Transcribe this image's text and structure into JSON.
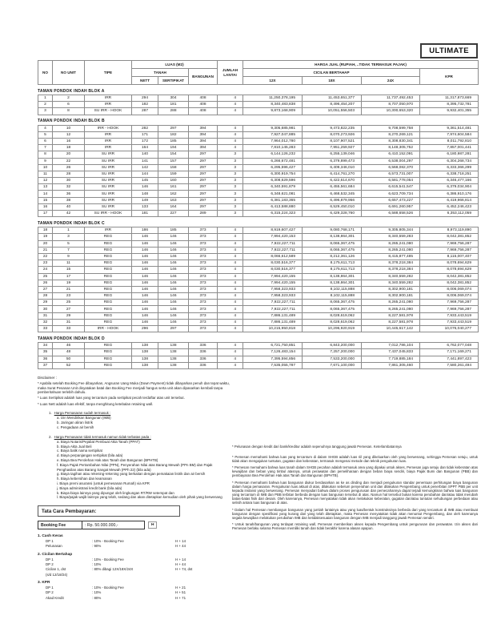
{
  "badge": "ULTIMATE",
  "table": {
    "header": {
      "no": "NO",
      "no_unit": "NO UNIT",
      "tipe": "TIPE",
      "luas": "LUAS (M2)",
      "tanah": "TANAH",
      "nett": "NETT",
      "sertipikat": "SERTIPIKAT",
      "bangunan": "BANGUNAN",
      "jumlah_lantai": "JUMLAH LANTAI",
      "harga_jual": "HARGA JUAL (RUPIAH, ..TIDAK TERMASUK PAJAK)",
      "cicilan": "CICILAN BERTAHAP",
      "x12": "12X",
      "x18": "18X",
      "x24": "24X",
      "kpr": "KPR"
    }
  },
  "sections": [
    {
      "title": "TAMAN PONDOK INDAH BLOK A",
      "rows": [
        [
          "1",
          "2",
          "IRR",
          "294",
          "304",
          "408",
          "4",
          "11,250,378,195",
          "11,453,651,377",
          "11,737,492,453",
          "11,317,873,669"
        ],
        [
          "2",
          "6",
          "IRR",
          "182",
          "181",
          "408",
          "4",
          "8,340,483,838",
          "8,496,454,207",
          "8,707,050,970",
          "8,395,732,781"
        ],
        [
          "3",
          "8",
          "SU IRR - HOOK",
          "287",
          "288",
          "408",
          "4",
          "9,873,168,909",
          "10,051,556,503",
          "10,300,653,320",
          "9,932,401,355"
        ]
      ]
    },
    {
      "title": "TAMAN PONDOK INDAH BLOK B",
      "rows": [
        [
          "4",
          "10",
          "IRR - HOOK",
          "282",
          "297",
          "394",
          "4",
          "9,305,685,981",
          "9,473,822,235",
          "9,708,599,758",
          "9,361,514,481"
        ],
        [
          "5",
          "12",
          "IRR",
          "171",
          "182",
          "394",
          "4",
          "7,927,047,885",
          "8,070,273,926",
          "8,270,269,121",
          "7,974,604,584"
        ],
        [
          "6",
          "16",
          "IRR",
          "172",
          "185",
          "394",
          "4",
          "7,964,012,780",
          "8,107,907,521",
          "8,308,830,341",
          "8,011,792,810"
        ],
        [
          "7",
          "18",
          "IRR",
          "164",
          "194",
          "394",
          "4",
          "7,810,145,283",
          "7,951,259,927",
          "8,148,305,752",
          "7,857,001,441"
        ],
        [
          "8",
          "20",
          "SU IRR",
          "140",
          "154",
          "297",
          "3",
          "6,144,126,232",
          "6,255,139,046",
          "6,410,152,091",
          "6,180,987,281"
        ],
        [
          "9",
          "22",
          "SU IRR",
          "141",
          "157",
          "297",
          "3",
          "6,266,672,481",
          "6,379,899,473",
          "6,538,004,297",
          "6,304,268,734"
        ],
        [
          "10",
          "26",
          "SU IRR",
          "142",
          "158",
          "297",
          "3",
          "6,295,596,427",
          "6,409,346,010",
          "6,568,082,370",
          "6,333,366,299"
        ],
        [
          "11",
          "28",
          "SU IRR",
          "144",
          "159",
          "297",
          "3",
          "6,300,919,754",
          "6,414,761,270",
          "6,573,731,007",
          "6,338,718,251"
        ],
        [
          "12",
          "30",
          "SU IRR",
          "145",
          "160",
          "297",
          "3",
          "6,308,629,596",
          "6,422,614,670",
          "6,581,778,054",
          "6,346,477,166"
        ],
        [
          "13",
          "32",
          "SU IRR",
          "146",
          "161",
          "297",
          "3",
          "6,340,591,879",
          "6,455,561,684",
          "6,615,541,547",
          "6,379,034,904"
        ],
        [
          "14",
          "36",
          "SU IRR",
          "148",
          "162",
          "297",
          "3",
          "6,348,621,081",
          "6,468,532,345",
          "6,623,709,734",
          "6,386,910,176"
        ],
        [
          "15",
          "38",
          "SU IRR",
          "149",
          "163",
          "297",
          "3",
          "6,381,183,365",
          "6,496,879,956",
          "6,657,473,227",
          "6,419,966,814"
        ],
        [
          "16",
          "40",
          "SU IRR",
          "133",
          "164",
          "297",
          "3",
          "6,413,588,880",
          "6,529,450,010",
          "6,691,260,957",
          "6,452,246,423"
        ],
        [
          "17",
          "42",
          "SU IRR - HOOK",
          "181",
          "227",
          "289",
          "3",
          "6,315,224,323",
          "6,429,328,760",
          "6,588,658,526",
          "6,353,112,059"
        ]
      ]
    },
    {
      "title": "TAMAN PONDOK INDAH BLOK C",
      "rows": [
        [
          "18",
          "1",
          "IRR",
          "186",
          "185",
          "373",
          "4",
          "8,919,607,427",
          "9,080,768,171",
          "9,305,805,344",
          "8,973,119,890"
        ],
        [
          "19",
          "3",
          "REG",
          "146",
          "146",
          "373",
          "4",
          "7,994,420,153",
          "8,138,864,301",
          "8,340,559,283",
          "8,042,381,852"
        ],
        [
          "20",
          "5",
          "REG",
          "146",
          "146",
          "373",
          "4",
          "7,922,227,711",
          "8,065,367,475",
          "8,265,241,080",
          "7,969,756,287"
        ],
        [
          "21",
          "7",
          "REG",
          "146",
          "146",
          "373",
          "4",
          "7,922,227,711",
          "8,065,367,475",
          "8,265,241,080",
          "7,969,756,287"
        ],
        [
          "22",
          "9",
          "REG",
          "146",
          "146",
          "373",
          "4",
          "8,066,612,589",
          "8,212,361,126",
          "8,415,877,485",
          "8,115,007,407"
        ],
        [
          "23",
          "11",
          "REG",
          "146",
          "146",
          "373",
          "4",
          "8,030,516,377",
          "8,175,611,713",
          "8,378,218,384",
          "8,078,694,629"
        ],
        [
          "24",
          "15",
          "REG",
          "146",
          "146",
          "373",
          "4",
          "8,030,516,377",
          "8,175,611,713",
          "8,378,218,384",
          "8,078,694,629"
        ],
        [
          "25",
          "17",
          "REG",
          "146",
          "146",
          "373",
          "4",
          "7,994,420,155",
          "8,138,864,301",
          "8,340,559,282",
          "8,042,381,852"
        ],
        [
          "26",
          "19",
          "REG",
          "146",
          "146",
          "373",
          "4",
          "7,994,420,155",
          "8,138,864,301",
          "8,340,559,282",
          "8,042,381,852"
        ],
        [
          "27",
          "21",
          "REG",
          "146",
          "146",
          "373",
          "4",
          "7,958,323,933",
          "8,102,115,888",
          "8,302,900,181",
          "8,006,069,074"
        ],
        [
          "28",
          "23",
          "REG",
          "146",
          "146",
          "373",
          "4",
          "7,958,323,933",
          "8,102,115,888",
          "8,302,900,181",
          "8,006,069,074"
        ],
        [
          "29",
          "25",
          "REG",
          "146",
          "146",
          "373",
          "4",
          "7,922,227,711",
          "8,065,367,475",
          "8,265,241,080",
          "7,969,756,287"
        ],
        [
          "30",
          "27",
          "REG",
          "146",
          "146",
          "373",
          "4",
          "7,922,227,711",
          "8,065,367,475",
          "8,265,241,080",
          "7,969,756,287"
        ],
        [
          "31",
          "29",
          "REG",
          "146",
          "146",
          "373",
          "4",
          "7,886,131,489",
          "8,028,619,062",
          "8,227,581,978",
          "7,933,443,519"
        ],
        [
          "32",
          "31",
          "REG",
          "146",
          "146",
          "373",
          "4",
          "7,886,131,489",
          "8,028,619,062",
          "8,227,581,978",
          "7,933,443,519"
        ],
        [
          "33",
          "33",
          "IRR - HOOK",
          "296",
          "297",
          "373",
          "4",
          "10,215,950,818",
          "10,296,920,919",
          "10,445,617,142",
          "10,076,040,277"
        ]
      ]
    },
    {
      "title": "TAMAN PONDOK INDAH BLOK D",
      "rows": [
        [
          "34",
          "46",
          "REG",
          "138",
          "138",
          "336",
          "4",
          "6,721,750,851",
          "6,843,200,000",
          "7,012,786,104",
          "6,762,077,048"
        ],
        [
          "35",
          "48",
          "REG",
          "138",
          "138",
          "336",
          "4",
          "7,126,483,154",
          "7,257,200,000",
          "7,437,045,833",
          "7,171,169,271"
        ],
        [
          "36",
          "50",
          "REG",
          "138",
          "138",
          "336",
          "4",
          "7,395,594,856",
          "7,533,200,000",
          "7,719,885,184",
          "7,441,897,423"
        ],
        [
          "37",
          "52",
          "REG",
          "138",
          "138",
          "336",
          "4",
          "7,535,055,787",
          "7,671,100,000",
          "7,861,305,460",
          "7,580,261,494"
        ]
      ]
    }
  ],
  "disclaimer": {
    "title": "Disclaimer :",
    "bullets": [
      "* Apabila setelah Booking Fee dibayarkan, Angsuran Uang Muka (Down Payment) tidak dibayarkan penuh dan tepat waktu, maka Surat Pesanan Unit dinyatakan batal dan Booking Fee menjadi hangus serta unit akan dipasarkan kembali tanpa pemberitahuan terlebih dahulu.",
      "* Luas Sertipikat adalah luas yang tercantum pada sertipikat pecah terdaftar atas unit tersebut.",
      "* Luas Nett adalah luas efektif, tanpa menghitung ketebalan retaining wall."
    ]
  },
  "included": {
    "number": "1.",
    "title": "Harga Pemasaran sudah termasuk :",
    "items": [
      "a. Izin Mendirikan Bangunan (IMB)",
      "b. Jaringan aliran listrik",
      "c. Pengadaan air bersih"
    ]
  },
  "excluded": {
    "number": "2.",
    "title": "Harga Pemasaran tidak termasuk namun tidak terbatas pada :",
    "items": [
      "a. Biaya Notaris/Pejabat Pembuat Akta Tanah (PPAT)",
      "b. Biaya Akta Jual Beli",
      "c. Biaya balik nama sertipikat",
      "d. Biaya perpanjangan sertipikat (bila ada)",
      "e. Biaya Bea Perolehan Hak atas Tanah dan Bangunan (BPHTB)",
      "f. Biaya Pajak Pertambahan Nilai (PPN), Penyerahan Nilai atas Barang Mewah (PPn BM) dan Pajak Penghasilan atas Barang Sangat Mewah (PPh 22) (bila ada)",
      "g. Biaya tagihan atau rekening-rekening yang berkaitan dengan pemakaian listrik dan air bersih",
      "h. Biaya kebersihan dan keamanan",
      "i. Biaya premi asuransi (untuk pemesanan Rumah) via KPR",
      "j. Biaya administrasi kredit bank (bila ada)",
      "k. Biaya-biaya lainnya yang dipungut oleh lingkungan RT/RW setempat dan",
      "l. Biaya/pajak wajib lainnya yang telah, sedang dan akan ditetapkan kemudian oleh pihak yang berwenang"
    ]
  },
  "payment": {
    "box_title": "Tata Cara Pembayaran:",
    "booking_fee_label": "Booking Fee",
    "booking_fee_value": ": Rp. 50.000.000,-",
    "booking_fee_suffix": "H",
    "plans": [
      {
        "title": "1. Cash Keras",
        "lines": [
          [
            "DP 1",
            ": 10% - Booking Fee",
            "H + 14"
          ],
          [
            "Pelunasan",
            ": 90%",
            "H + 44"
          ]
        ]
      },
      {
        "title": "2. Cicilan Bertahap",
        "lines": [
          [
            "DP 1",
            ": 10% - Booking Fee",
            "H + 14"
          ],
          [
            "DP 2",
            ": 10%",
            "H + 44"
          ],
          [
            "Cicilan 1, dst",
            ": 80% dibagi 12X/18X/24X",
            "H + 74, dst"
          ],
          [
            "(s/d 12/18/24)",
            "",
            ""
          ]
        ]
      },
      {
        "title": "3. KPR",
        "lines": [
          [
            "DP 1",
            ": 10% - Booking Fee",
            "H + 21"
          ],
          [
            "DP 2",
            ": 10%",
            "H + 51"
          ],
          [
            "Akad Kredit",
            ": 80%",
            "H + 71"
          ]
        ]
      }
    ]
  },
  "right_notes": [
    "* Pelunasan dengan kredit dari bank/kreditur adalah sepenuhnya tanggung jawab Pemesan. Keterlambatannya",
    "* Pemesan memahami bahwa luas yang tercantum di dalam SHGB adalah luas riil yang dikeluarkan oleh yang berwenang, sehingga Pemesan setuju, untuk tidak akan mengajukan tuntutan, gugatan dan keberatan, termasuk mengenai metode dan teknik pengukuran luas.",
    "* Pemesan memahami bahwa luas tanah dalam SHGB pecahan adalah termasuk area yang dipakai untuk akses, Pemesan juga setuju dan tidak keberatan atas kewajiban dan beban yang timbul atasnya, untuk perawatan dan pemeliharaan dengan beban biaya sendiri, biaya Pajak Bumi dan Bangunan (PBB) dan pembayaran Bea Perolehan Hak atas Tanah dan Bangunan (BPHTB).",
    "* Pemesan memahami bahwa luas bangunan diukur berdasarkan as ke as dinding dan menjadi pengukuran standar penentuan perhitungan biaya bangunan dalam harga pemasaran. Pengukuran luas aktual di atas, dilakukan sebelum penyerahan unit dan dilakukan Pengembang untuk penerbitan SPPT PBB per unit kepada instansi yang berwenang. Pemesan menyadari bahwa dalam proses pengurusan dan pemecahannya dapat terjadi kemungkinan bahwa luas bangunan yang tercantum di IMB dan PBB terbitan berbeda dengan luas bangunan tersebut di atas. Namun hal tersebut bukan karena perubahan dan/atau tidak merubah batas-batas fisik dari desain. Oleh karenanya, Pemesan menyatakan tidak akan melakukan keberatan, gugatan dan/atau tuntutan sehubungan perbedaan atau selisih antara luas bangunan di atas.",
    "* Dalam hal Pemesan membangun bangunan yang jumlah lantainya atau yang luas/bentuk konstruksinya berbeda dari yang tercantum di IMB atau membuat bangunan dengan spesifikasi yang kurang dari yang telah ditetapkan, maka Pemesan menyatakan tidak akan menuntut Pengembang, dan oleh karenanya segala kewajiban melakukan perubahan IMB dan ketidaksesuaian bangunan dengan IMB menjadi tanggung jawab Pemesan sendiri.",
    "* Untuk tanah/bangunan yang terdapat retaining wall, Pemesan memberikan akses kepada Pengembang untuk pengurusan dan perawatan. Izin akses dari Pemesan berlaku selama Pemesan memiliki tanah dan tidak berakhir karena alasan apapun."
  ]
}
